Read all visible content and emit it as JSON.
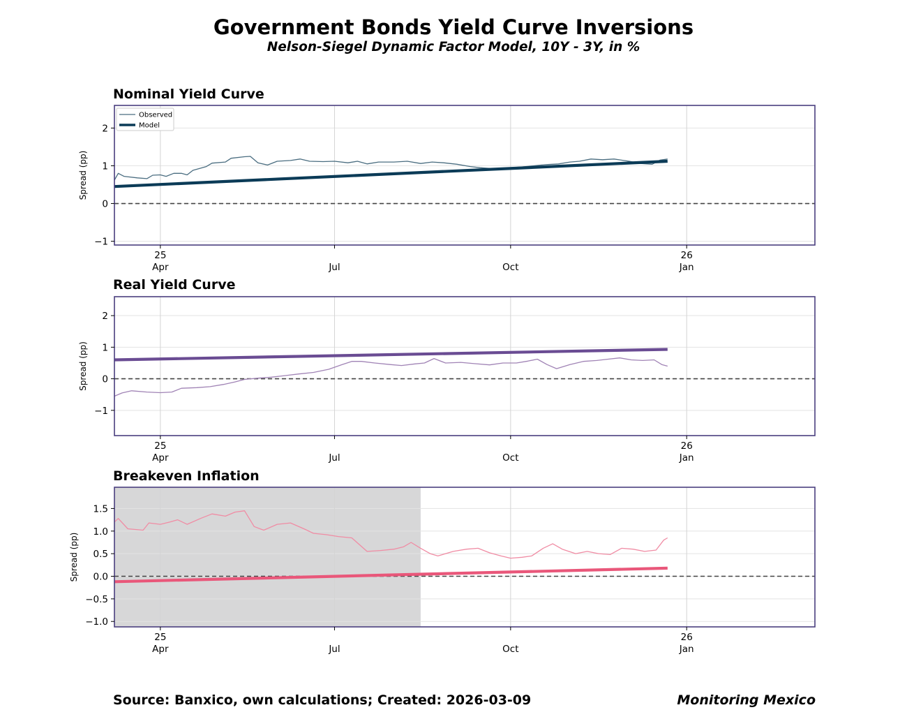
{
  "page": {
    "title": "Government Bonds Yield Curve Inversions",
    "subtitle": "Nelson-Siegel Dynamic Factor Model, 10Y - 3Y, in %",
    "source": "Source: Banxico, own calculations; Created: 2026-03-09",
    "brand": "Monitoring Mexico"
  },
  "chart_data": [
    {
      "type": "line",
      "title": "Nominal Yield Curve",
      "ylabel": "Spread (pp)",
      "xlim": [
        "2025-03-08",
        "2026-03-09"
      ],
      "ylim": [
        -1.1,
        2.6
      ],
      "yticks": [
        -1,
        0,
        1,
        2
      ],
      "xticks": [
        {
          "date": "2025-04-01",
          "label": "25\nApr"
        },
        {
          "date": "2025-07-01",
          "label": "Jul"
        },
        {
          "date": "2025-10-01",
          "label": "Oct"
        },
        {
          "date": "2026-01-01",
          "label": "26\nJan"
        }
      ],
      "zero_line": true,
      "grid": true,
      "legend": {
        "placement": "top-left",
        "entries": [
          "Observed",
          "Model"
        ]
      },
      "series": [
        {
          "name": "Observed",
          "color": "#4a6d80",
          "style": "thin",
          "points": [
            [
              "2025-03-08",
              0.62
            ],
            [
              "2025-03-10",
              0.8
            ],
            [
              "2025-03-13",
              0.72
            ],
            [
              "2025-03-20",
              0.68
            ],
            [
              "2025-03-25",
              0.66
            ],
            [
              "2025-03-28",
              0.75
            ],
            [
              "2025-04-01",
              0.76
            ],
            [
              "2025-04-04",
              0.72
            ],
            [
              "2025-04-08",
              0.8
            ],
            [
              "2025-04-12",
              0.8
            ],
            [
              "2025-04-15",
              0.76
            ],
            [
              "2025-04-18",
              0.88
            ],
            [
              "2025-04-25",
              0.98
            ],
            [
              "2025-04-28",
              1.07
            ],
            [
              "2025-05-05",
              1.1
            ],
            [
              "2025-05-08",
              1.2
            ],
            [
              "2025-05-15",
              1.24
            ],
            [
              "2025-05-18",
              1.25
            ],
            [
              "2025-05-22",
              1.08
            ],
            [
              "2025-05-27",
              1.02
            ],
            [
              "2025-06-01",
              1.12
            ],
            [
              "2025-06-08",
              1.14
            ],
            [
              "2025-06-13",
              1.18
            ],
            [
              "2025-06-18",
              1.12
            ],
            [
              "2025-06-25",
              1.11
            ],
            [
              "2025-07-01",
              1.12
            ],
            [
              "2025-07-08",
              1.08
            ],
            [
              "2025-07-13",
              1.12
            ],
            [
              "2025-07-18",
              1.05
            ],
            [
              "2025-07-24",
              1.1
            ],
            [
              "2025-08-01",
              1.1
            ],
            [
              "2025-08-08",
              1.12
            ],
            [
              "2025-08-15",
              1.06
            ],
            [
              "2025-08-21",
              1.1
            ],
            [
              "2025-08-27",
              1.08
            ],
            [
              "2025-09-03",
              1.04
            ],
            [
              "2025-09-10",
              0.98
            ],
            [
              "2025-09-15",
              0.95
            ],
            [
              "2025-09-20",
              0.93
            ],
            [
              "2025-09-26",
              0.92
            ],
            [
              "2025-10-01",
              0.95
            ],
            [
              "2025-10-07",
              0.97
            ],
            [
              "2025-10-13",
              1.0
            ],
            [
              "2025-10-19",
              1.03
            ],
            [
              "2025-10-26",
              1.05
            ],
            [
              "2025-11-01",
              1.1
            ],
            [
              "2025-11-06",
              1.12
            ],
            [
              "2025-11-12",
              1.18
            ],
            [
              "2025-11-18",
              1.16
            ],
            [
              "2025-11-24",
              1.18
            ],
            [
              "2025-12-02",
              1.12
            ],
            [
              "2025-12-08",
              1.06
            ],
            [
              "2025-12-14",
              1.04
            ],
            [
              "2025-12-18",
              1.15
            ],
            [
              "2025-12-22",
              1.18
            ]
          ]
        },
        {
          "name": "Model",
          "color": "#0b3b57",
          "style": "thick",
          "points": [
            [
              "2025-03-08",
              0.45
            ],
            [
              "2025-12-22",
              1.12
            ]
          ]
        }
      ]
    },
    {
      "type": "line",
      "title": "Real Yield Curve",
      "ylabel": "Spread (pp)",
      "xlim": [
        "2025-03-08",
        "2026-03-09"
      ],
      "ylim": [
        -1.8,
        2.6
      ],
      "yticks": [
        -1,
        0,
        1,
        2
      ],
      "xticks": [
        {
          "date": "2025-04-01",
          "label": "25\nApr"
        },
        {
          "date": "2025-07-01",
          "label": "Jul"
        },
        {
          "date": "2025-10-01",
          "label": "Oct"
        },
        {
          "date": "2026-01-01",
          "label": "26\nJan"
        }
      ],
      "zero_line": true,
      "grid": true,
      "series": [
        {
          "name": "",
          "color": "#a083b5",
          "style": "thin",
          "points": [
            [
              "2025-03-08",
              -0.55
            ],
            [
              "2025-03-12",
              -0.45
            ],
            [
              "2025-03-17",
              -0.38
            ],
            [
              "2025-03-25",
              -0.42
            ],
            [
              "2025-04-01",
              -0.44
            ],
            [
              "2025-04-07",
              -0.42
            ],
            [
              "2025-04-12",
              -0.3
            ],
            [
              "2025-04-20",
              -0.28
            ],
            [
              "2025-04-27",
              -0.25
            ],
            [
              "2025-05-04",
              -0.18
            ],
            [
              "2025-05-10",
              -0.1
            ],
            [
              "2025-05-15",
              -0.02
            ],
            [
              "2025-05-22",
              0.02
            ],
            [
              "2025-05-29",
              0.05
            ],
            [
              "2025-06-05",
              0.1
            ],
            [
              "2025-06-12",
              0.15
            ],
            [
              "2025-06-20",
              0.2
            ],
            [
              "2025-06-28",
              0.3
            ],
            [
              "2025-07-05",
              0.45
            ],
            [
              "2025-07-10",
              0.55
            ],
            [
              "2025-07-15",
              0.55
            ],
            [
              "2025-07-22",
              0.5
            ],
            [
              "2025-07-30",
              0.45
            ],
            [
              "2025-08-05",
              0.42
            ],
            [
              "2025-08-12",
              0.47
            ],
            [
              "2025-08-17",
              0.5
            ],
            [
              "2025-08-22",
              0.64
            ],
            [
              "2025-08-28",
              0.5
            ],
            [
              "2025-09-05",
              0.52
            ],
            [
              "2025-09-12",
              0.48
            ],
            [
              "2025-09-20",
              0.44
            ],
            [
              "2025-09-27",
              0.5
            ],
            [
              "2025-10-04",
              0.5
            ],
            [
              "2025-10-10",
              0.56
            ],
            [
              "2025-10-15",
              0.62
            ],
            [
              "2025-10-20",
              0.45
            ],
            [
              "2025-10-25",
              0.32
            ],
            [
              "2025-11-01",
              0.45
            ],
            [
              "2025-11-08",
              0.55
            ],
            [
              "2025-11-15",
              0.58
            ],
            [
              "2025-11-21",
              0.62
            ],
            [
              "2025-11-27",
              0.66
            ],
            [
              "2025-12-03",
              0.6
            ],
            [
              "2025-12-09",
              0.58
            ],
            [
              "2025-12-15",
              0.6
            ],
            [
              "2025-12-19",
              0.45
            ],
            [
              "2025-12-22",
              0.4
            ]
          ]
        },
        {
          "name": "",
          "color": "#6a4c93",
          "style": "thick",
          "points": [
            [
              "2025-03-08",
              0.6
            ],
            [
              "2025-12-22",
              0.93
            ]
          ]
        }
      ]
    },
    {
      "type": "line",
      "title": "Breakeven Inflation",
      "ylabel": "Spread (pp)",
      "xlim": [
        "2025-03-08",
        "2026-03-09"
      ],
      "ylim": [
        -1.12,
        1.97
      ],
      "yticks": [
        -1.0,
        -0.5,
        0.0,
        0.5,
        1.0,
        1.5
      ],
      "xticks": [
        {
          "date": "2025-04-01",
          "label": "25\nApr"
        },
        {
          "date": "2025-07-01",
          "label": "Jul"
        },
        {
          "date": "2025-10-01",
          "label": "Oct"
        },
        {
          "date": "2026-01-01",
          "label": "26\nJan"
        }
      ],
      "zero_line": true,
      "grid": true,
      "shaded_region": {
        "from": "2025-03-08",
        "to": "2025-08-15",
        "color": "#d7d7d8"
      },
      "series": [
        {
          "name": "",
          "color": "#f08ca4",
          "style": "thin",
          "points": [
            [
              "2025-03-08",
              1.2
            ],
            [
              "2025-03-10",
              1.28
            ],
            [
              "2025-03-15",
              1.05
            ],
            [
              "2025-03-23",
              1.02
            ],
            [
              "2025-03-26",
              1.18
            ],
            [
              "2025-04-01",
              1.15
            ],
            [
              "2025-04-06",
              1.2
            ],
            [
              "2025-04-10",
              1.25
            ],
            [
              "2025-04-15",
              1.15
            ],
            [
              "2025-04-22",
              1.28
            ],
            [
              "2025-04-28",
              1.38
            ],
            [
              "2025-05-05",
              1.33
            ],
            [
              "2025-05-10",
              1.42
            ],
            [
              "2025-05-15",
              1.45
            ],
            [
              "2025-05-20",
              1.1
            ],
            [
              "2025-05-25",
              1.02
            ],
            [
              "2025-06-01",
              1.15
            ],
            [
              "2025-06-08",
              1.18
            ],
            [
              "2025-06-15",
              1.05
            ],
            [
              "2025-06-20",
              0.95
            ],
            [
              "2025-06-27",
              0.92
            ],
            [
              "2025-07-03",
              0.88
            ],
            [
              "2025-07-10",
              0.85
            ],
            [
              "2025-07-18",
              0.55
            ],
            [
              "2025-07-25",
              0.57
            ],
            [
              "2025-08-01",
              0.6
            ],
            [
              "2025-08-06",
              0.65
            ],
            [
              "2025-08-10",
              0.75
            ],
            [
              "2025-08-15",
              0.62
            ],
            [
              "2025-08-20",
              0.5
            ],
            [
              "2025-08-24",
              0.45
            ],
            [
              "2025-09-01",
              0.55
            ],
            [
              "2025-09-08",
              0.6
            ],
            [
              "2025-09-14",
              0.62
            ],
            [
              "2025-09-20",
              0.52
            ],
            [
              "2025-09-26",
              0.45
            ],
            [
              "2025-10-01",
              0.4
            ],
            [
              "2025-10-07",
              0.42
            ],
            [
              "2025-10-12",
              0.45
            ],
            [
              "2025-10-18",
              0.62
            ],
            [
              "2025-10-23",
              0.72
            ],
            [
              "2025-10-28",
              0.6
            ],
            [
              "2025-11-04",
              0.5
            ],
            [
              "2025-11-10",
              0.55
            ],
            [
              "2025-11-16",
              0.5
            ],
            [
              "2025-11-22",
              0.48
            ],
            [
              "2025-11-28",
              0.62
            ],
            [
              "2025-12-04",
              0.6
            ],
            [
              "2025-12-10",
              0.55
            ],
            [
              "2025-12-16",
              0.58
            ],
            [
              "2025-12-20",
              0.8
            ],
            [
              "2025-12-22",
              0.85
            ]
          ]
        },
        {
          "name": "",
          "color": "#e9577a",
          "style": "thick",
          "points": [
            [
              "2025-03-08",
              -0.12
            ],
            [
              "2025-12-22",
              0.18
            ]
          ]
        }
      ]
    }
  ]
}
